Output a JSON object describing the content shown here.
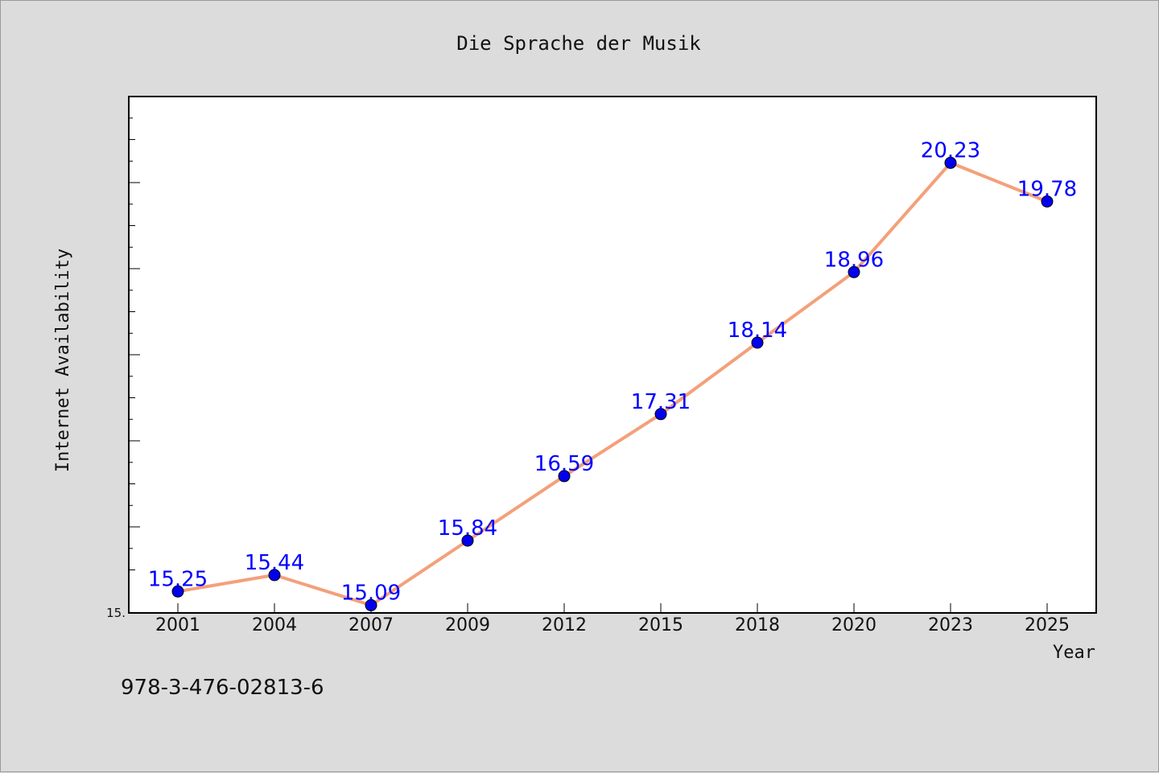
{
  "chart_data": {
    "type": "line",
    "title": "Die Sprache der Musik",
    "xlabel": "Year",
    "ylabel": "Internet Availability",
    "categories": [
      "2001",
      "2004",
      "2007",
      "2009",
      "2012",
      "2015",
      "2018",
      "2020",
      "2023",
      "2025"
    ],
    "series": [
      {
        "values": [
          15.25,
          15.44,
          15.09,
          15.84,
          16.59,
          17.31,
          18.14,
          18.96,
          20.23,
          19.78
        ],
        "line_color": "#f4a07a",
        "marker_color": "#0000ee",
        "label_color": "#0000ff"
      }
    ],
    "ylim": [
      15.0,
      21.0
    ],
    "ytick_label": "15.",
    "grid": false,
    "legend": "none"
  },
  "footer": {
    "isbn": "978-3-476-02813-6"
  }
}
